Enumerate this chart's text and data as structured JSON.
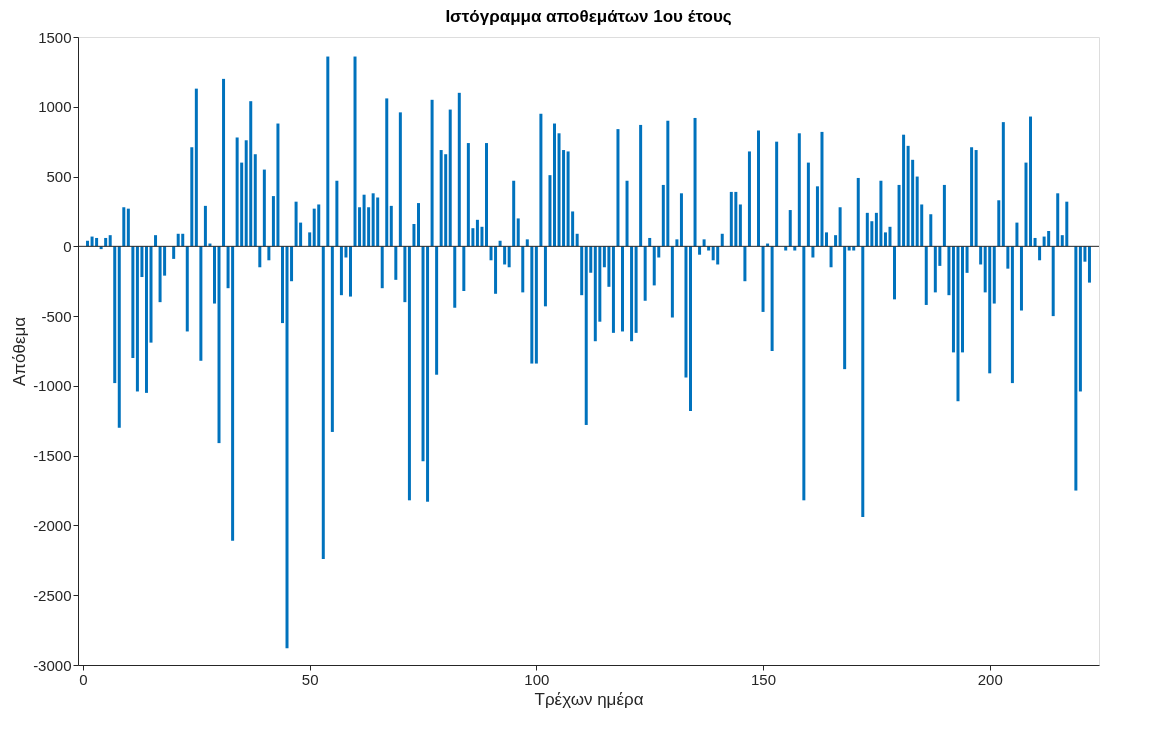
{
  "chart_data": {
    "type": "bar",
    "title": "Ιστόγραμμα αποθεμάτων 1ου έτους",
    "xlabel": "Τρέχων ημέρα",
    "ylabel": "Απόθεμα",
    "x": [
      1,
      2,
      3,
      4,
      5,
      6,
      7,
      8,
      9,
      10,
      11,
      12,
      13,
      14,
      15,
      16,
      17,
      18,
      19,
      20,
      21,
      22,
      23,
      24,
      25,
      26,
      27,
      28,
      29,
      30,
      31,
      32,
      33,
      34,
      35,
      36,
      37,
      38,
      39,
      40,
      41,
      42,
      43,
      44,
      45,
      46,
      47,
      48,
      49,
      50,
      51,
      52,
      53,
      54,
      55,
      56,
      57,
      58,
      59,
      60,
      61,
      62,
      63,
      64,
      65,
      66,
      67,
      68,
      69,
      70,
      71,
      72,
      73,
      74,
      75,
      76,
      77,
      78,
      79,
      80,
      81,
      82,
      83,
      84,
      85,
      86,
      87,
      88,
      89,
      90,
      91,
      92,
      93,
      94,
      95,
      96,
      97,
      98,
      99,
      100,
      101,
      102,
      103,
      104,
      105,
      106,
      107,
      108,
      109,
      110,
      111,
      112,
      113,
      114,
      115,
      116,
      117,
      118,
      119,
      120,
      121,
      122,
      123,
      124,
      125,
      126,
      127,
      128,
      129,
      130,
      131,
      132,
      133,
      134,
      135,
      136,
      137,
      138,
      139,
      140,
      141,
      142,
      143,
      144,
      145,
      146,
      147,
      148,
      149,
      150,
      151,
      152,
      153,
      154,
      155,
      156,
      157,
      158,
      159,
      160,
      161,
      162,
      163,
      164,
      165,
      166,
      167,
      168,
      169,
      170,
      171,
      172,
      173,
      174,
      175,
      176,
      177,
      178,
      179,
      180,
      181,
      182,
      183,
      184,
      185,
      186,
      187,
      188,
      189,
      190,
      191,
      192,
      193,
      194,
      195,
      196,
      197,
      198,
      199,
      200,
      201,
      202,
      203,
      204,
      205,
      206,
      207,
      208,
      209,
      210,
      211,
      212,
      213,
      214,
      215,
      216,
      217,
      218,
      219,
      220,
      221,
      222
    ],
    "series": [
      {
        "color": "#0072bd",
        "values": [
          40,
          70,
          60,
          -20,
          60,
          80,
          -980,
          -1300,
          280,
          270,
          -800,
          -1040,
          -220,
          -1050,
          -690,
          80,
          -400,
          -210,
          0,
          -90,
          90,
          90,
          -610,
          710,
          1130,
          -820,
          290,
          20,
          -410,
          -1410,
          1200,
          -300,
          -2110,
          780,
          600,
          760,
          1040,
          660,
          -150,
          550,
          -100,
          360,
          880,
          -550,
          -2880,
          -250,
          320,
          170,
          0,
          100,
          270,
          300,
          -2240,
          1360,
          -1330,
          470,
          -350,
          -80,
          -360,
          1360,
          280,
          370,
          280,
          380,
          350,
          -300,
          1060,
          290,
          -240,
          960,
          -400,
          -1820,
          160,
          310,
          -1540,
          -1830,
          1050,
          -920,
          690,
          660,
          980,
          -440,
          1100,
          -320,
          740,
          130,
          190,
          140,
          740,
          -100,
          -340,
          40,
          -130,
          -150,
          470,
          200,
          -330,
          50,
          -840,
          -840,
          950,
          -430,
          510,
          880,
          810,
          690,
          680,
          250,
          90,
          -350,
          -1280,
          -190,
          -680,
          -540,
          -150,
          -290,
          -620,
          840,
          -610,
          470,
          -680,
          -620,
          870,
          -390,
          60,
          -280,
          -80,
          440,
          900,
          -510,
          50,
          380,
          -940,
          -1180,
          920,
          -60,
          50,
          -30,
          -100,
          -130,
          90,
          0,
          390,
          390,
          300,
          -250,
          680,
          0,
          830,
          -470,
          20,
          -750,
          750,
          0,
          -30,
          260,
          -30,
          810,
          -1820,
          600,
          -80,
          430,
          820,
          100,
          -150,
          80,
          280,
          -880,
          -30,
          -30,
          490,
          -1940,
          240,
          180,
          240,
          470,
          100,
          140,
          -380,
          440,
          800,
          720,
          620,
          500,
          300,
          -420,
          230,
          -330,
          -140,
          440,
          -350,
          -760,
          -1110,
          -760,
          -190,
          710,
          690,
          -130,
          -330,
          -910,
          -410,
          330,
          890,
          -160,
          -980,
          170,
          -460,
          600,
          930,
          60,
          -100,
          70,
          110,
          -500,
          380,
          80,
          320,
          0,
          -1750,
          -1040,
          -110,
          -260
        ]
      }
    ],
    "xlim": [
      0,
      223
    ],
    "xticks": [
      0,
      50,
      100,
      150,
      200
    ],
    "ylim": [
      -3000,
      1500
    ],
    "yticks": [
      -3000,
      -2500,
      -2000,
      -1500,
      -1000,
      -500,
      0,
      500,
      1000,
      1500
    ],
    "ref_lines": [
      {
        "axis": "y",
        "value": 0,
        "color": "#262626"
      }
    ],
    "grid": false
  }
}
